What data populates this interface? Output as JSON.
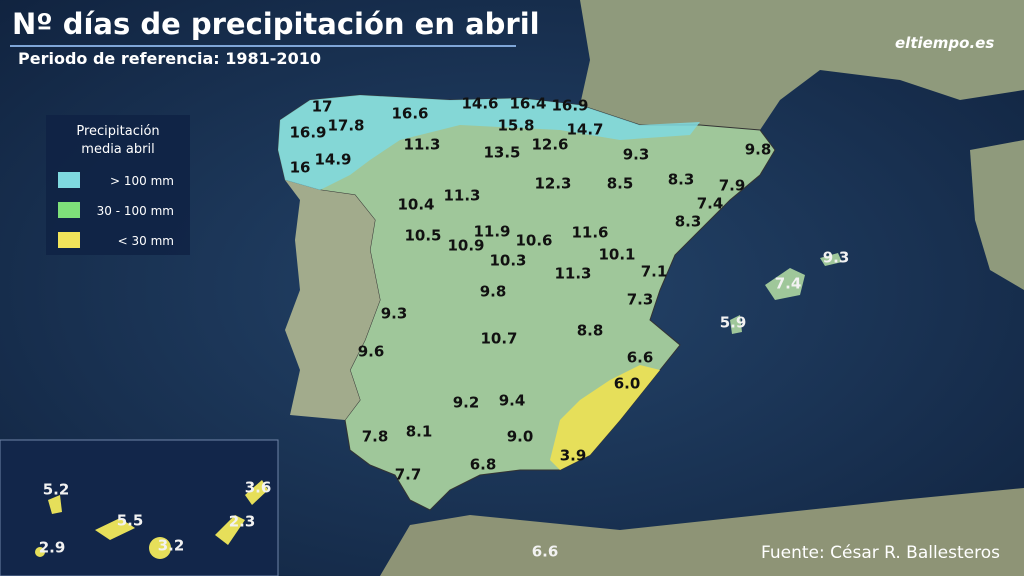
{
  "header": {
    "title": "Nº días de precipitación en abril",
    "subtitle": "Periodo de referencia: 1981-2010",
    "logo": "eltiempo.es"
  },
  "legend": {
    "title": [
      "Precipitación",
      "media abril"
    ],
    "items": [
      "> 100 mm",
      "30 - 100 mm",
      "< 30 mm"
    ]
  },
  "labels": [
    "17",
    "16.6",
    "14.6",
    "16.4",
    "16.9",
    "16.9",
    "17.8",
    "15.8",
    "14.7",
    "11.3",
    "13.5",
    "12.6",
    "9.3",
    "9.8",
    "16",
    "14.9",
    "12.3",
    "8.5",
    "8.3",
    "7.9",
    "11.3",
    "10.4",
    "7.4",
    "8.3",
    "11.9",
    "10.5",
    "10.9",
    "10.6",
    "11.6",
    "10.1",
    "10.3",
    "7.1",
    "11.3",
    "9.3",
    "7.4",
    "9.8",
    "7.3",
    "5.9",
    "9.3",
    "10.7",
    "8.8",
    "9.6",
    "6.6",
    "6.0",
    "9.2",
    "9.4",
    "7.8",
    "8.1",
    "9.0",
    "3.9",
    "7.7",
    "6.8",
    "6.6",
    "5.2",
    "3.6",
    "5.5",
    "2.3",
    "2.9",
    "3.2"
  ],
  "footer": {
    "source": "Fuente: César R. Ballesteros"
  }
}
